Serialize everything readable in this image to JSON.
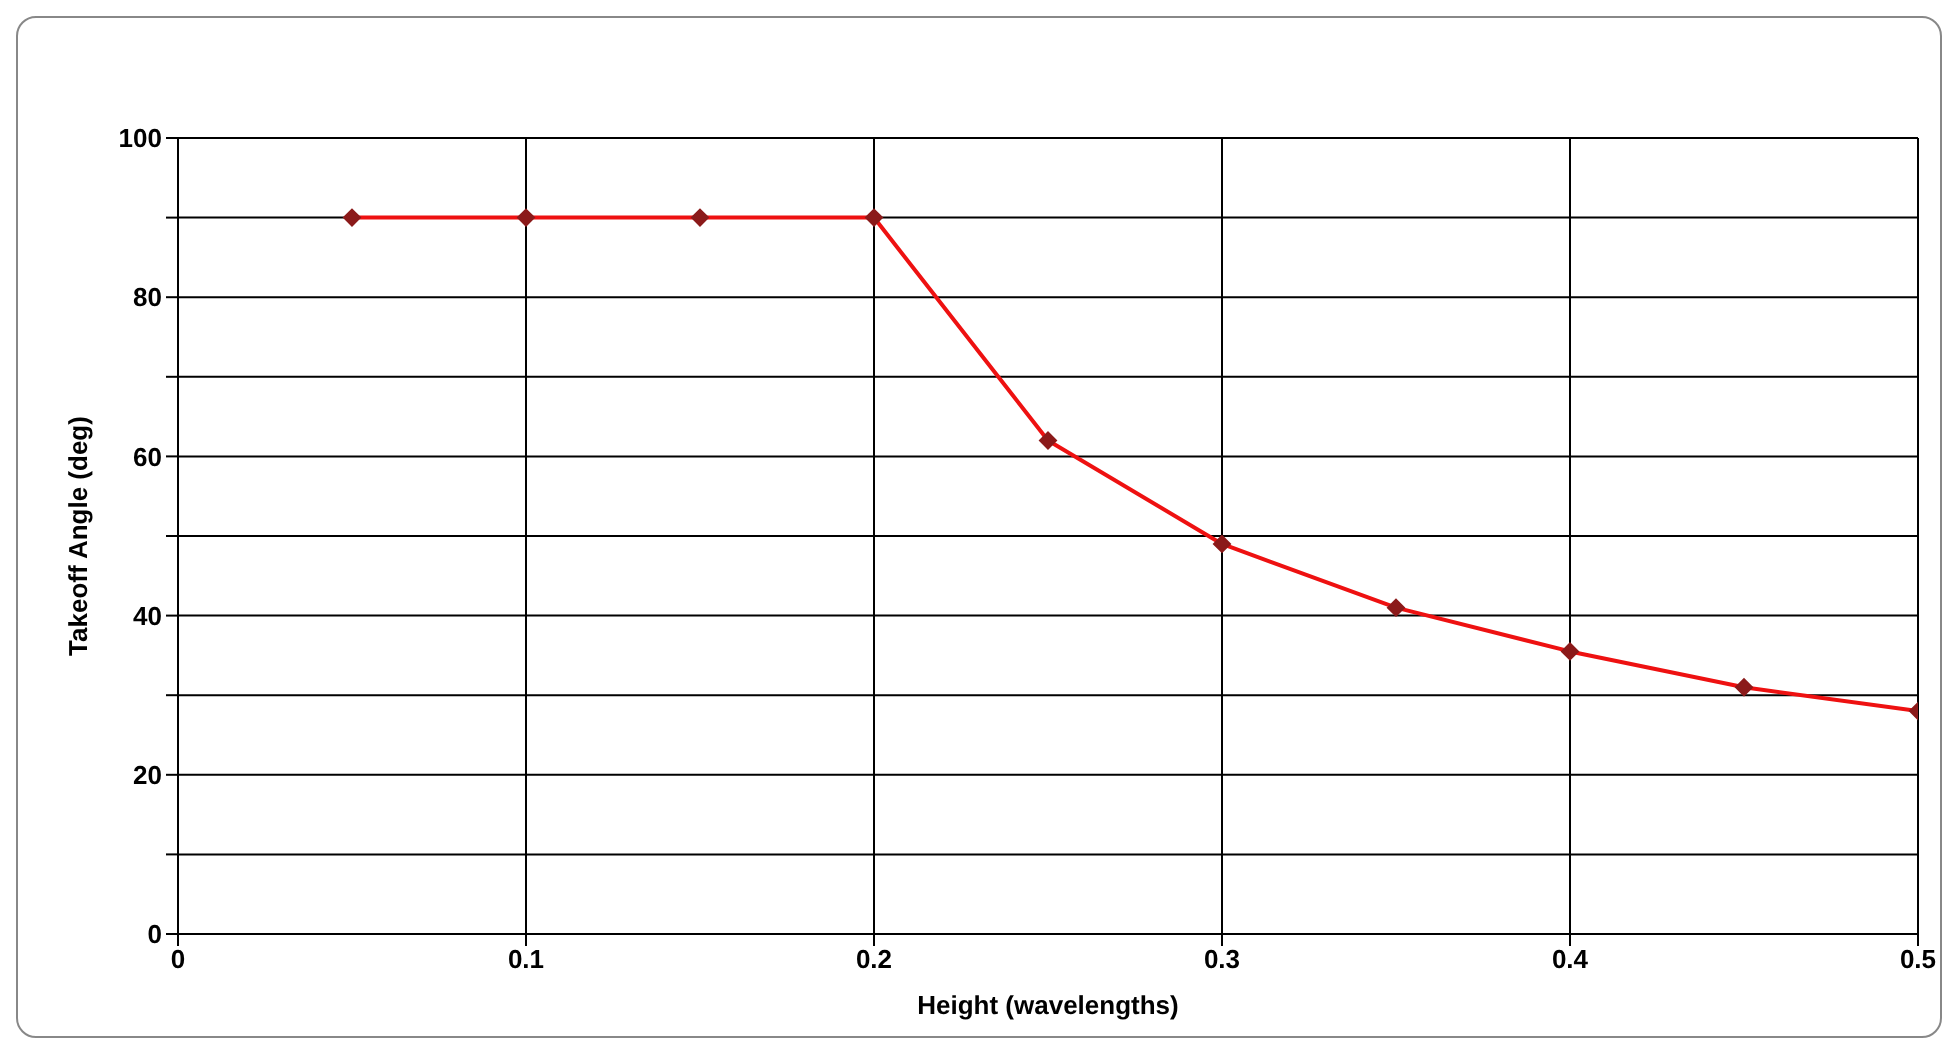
{
  "chart_data": {
    "type": "line",
    "xlabel": "Height (wavelengths)",
    "ylabel": "Takeoff Angle (deg)",
    "x": [
      0.05,
      0.1,
      0.15,
      0.2,
      0.25,
      0.3,
      0.35,
      0.4,
      0.45,
      0.5
    ],
    "series": [
      {
        "color": "#ee1111",
        "values": [
          90,
          90,
          90,
          90,
          62,
          49,
          41,
          35.5,
          31,
          28
        ]
      }
    ],
    "xlim": [
      0,
      0.5
    ],
    "xticks": [
      0,
      0.1,
      0.2,
      0.3,
      0.4,
      0.5
    ],
    "ylim": [
      0,
      100
    ],
    "yticks": [
      0,
      {
        "value": 10,
        "label": null
      },
      20,
      {
        "value": 30,
        "label": null
      },
      40,
      {
        "value": 50,
        "label": null
      },
      60,
      {
        "value": 70,
        "label": null
      },
      80,
      {
        "value": 90,
        "label": null
      },
      100
    ],
    "grid": true,
    "marker": "diamond",
    "line_style": "solid",
    "legend": false
  }
}
